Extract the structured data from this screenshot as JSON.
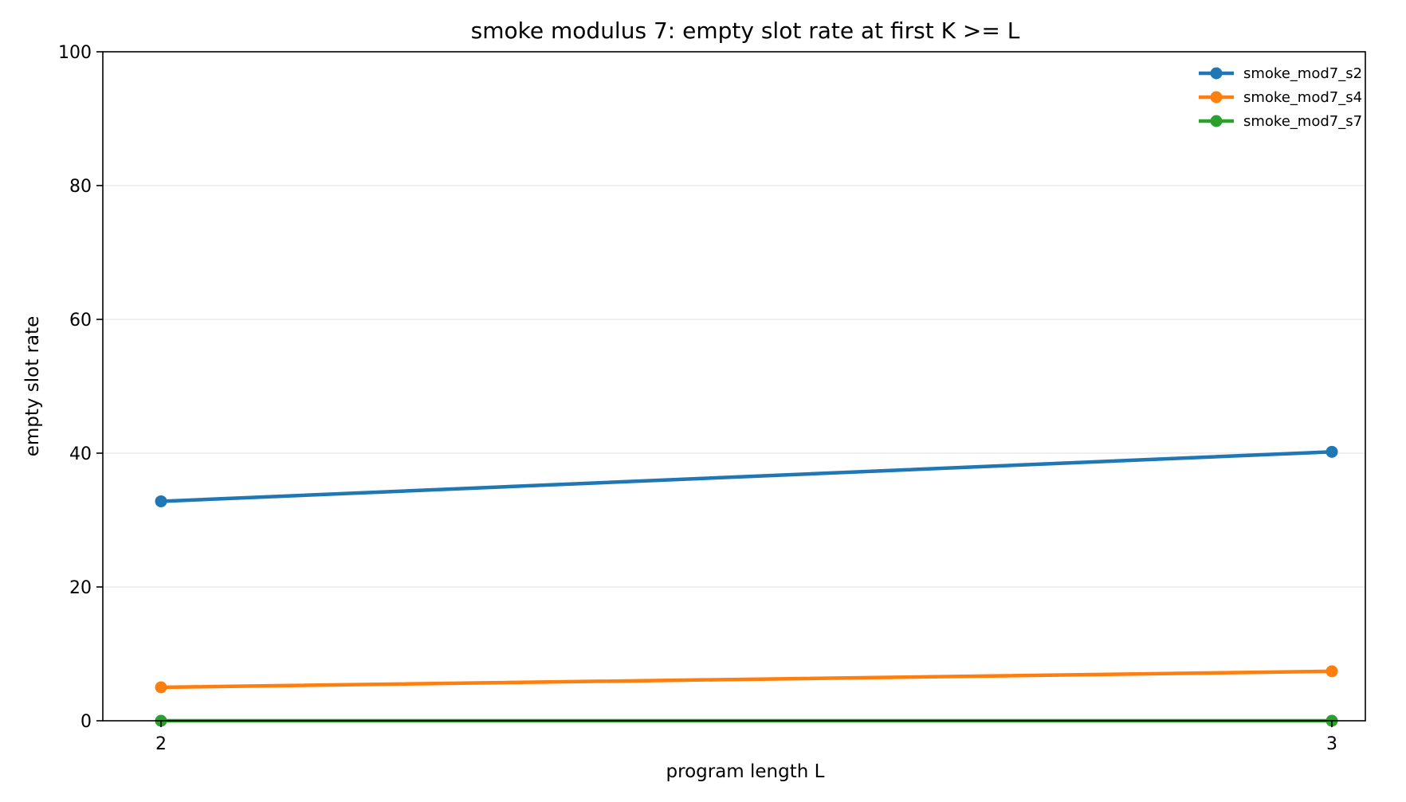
{
  "chart_data": {
    "type": "line",
    "title": "smoke modulus 7: empty slot rate at first K >= L",
    "xlabel": "program length L",
    "ylabel": "empty slot rate",
    "x": [
      2,
      3
    ],
    "x_tick_labels": [
      "2",
      "3"
    ],
    "ylim": [
      0,
      100
    ],
    "y_ticks": [
      0,
      20,
      40,
      60,
      80,
      100
    ],
    "y_tick_labels": [
      "0",
      "20",
      "40",
      "60",
      "80",
      "100"
    ],
    "grid": "horizontal",
    "legend_position": "top-right",
    "series": [
      {
        "name": "smoke_mod7_s2",
        "color": "#1f77b4",
        "values": [
          32.8,
          40.2
        ]
      },
      {
        "name": "smoke_mod7_s4",
        "color": "#ff7f0e",
        "values": [
          5.0,
          7.4
        ]
      },
      {
        "name": "smoke_mod7_s7",
        "color": "#2ca02c",
        "values": [
          0.0,
          0.0
        ]
      }
    ]
  }
}
